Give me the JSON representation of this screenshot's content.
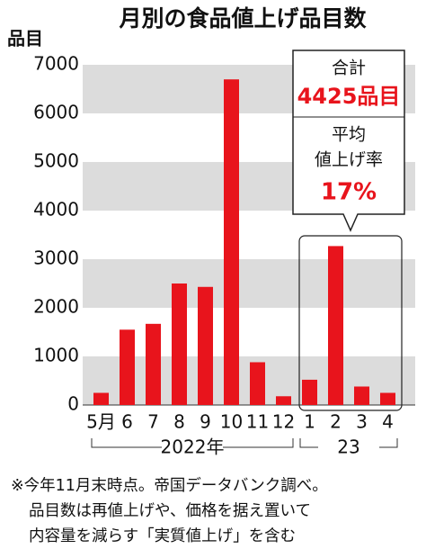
{
  "chart_data": {
    "type": "bar",
    "title": "月別の食品値上げ品目数",
    "y_label": "品目",
    "categories": [
      "5月",
      "6",
      "7",
      "8",
      "9",
      "10",
      "11",
      "12",
      "1",
      "2",
      "3",
      "4"
    ],
    "values": [
      250,
      1550,
      1670,
      2500,
      2430,
      6700,
      880,
      180,
      520,
      3270,
      380,
      250
    ],
    "color": "#e8141c",
    "ylim": [
      0,
      7000
    ],
    "yticks": [
      0,
      1000,
      2000,
      3000,
      4000,
      5000,
      6000,
      7000
    ],
    "grid": true,
    "groups": [
      "2022年",
      "23"
    ],
    "annotation": {
      "total_label": "合計",
      "total": "4425品目",
      "avg_label": [
        "平均",
        "値上げ率"
      ],
      "avg": "17%"
    },
    "notes": [
      "※今年11月末時点。帝国データバンク調べ。",
      "品目数は再値上げや、価格を据え置いて",
      "内容量を減らす「実質値上げ」を含む"
    ]
  }
}
